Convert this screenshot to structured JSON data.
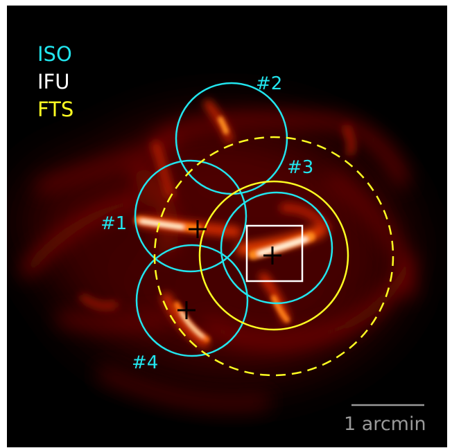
{
  "legend": {
    "items": [
      {
        "label": "ISO",
        "color": "#22e5ee"
      },
      {
        "label": "IFU",
        "color": "#ffffff"
      },
      {
        "label": "FTS",
        "color": "#ffff22"
      }
    ]
  },
  "apertures": {
    "iso_labels": [
      "#1",
      "#2",
      "#3",
      "#4"
    ]
  },
  "scale_bar": {
    "label": "1 arcmin",
    "color": "#9a9a9a"
  },
  "colors": {
    "background": "#000000",
    "emission_dim": "#5a0000",
    "emission_mid": "#c01a00",
    "emission_bright": "#ff6a00",
    "emission_peak": "#fff6dc"
  }
}
